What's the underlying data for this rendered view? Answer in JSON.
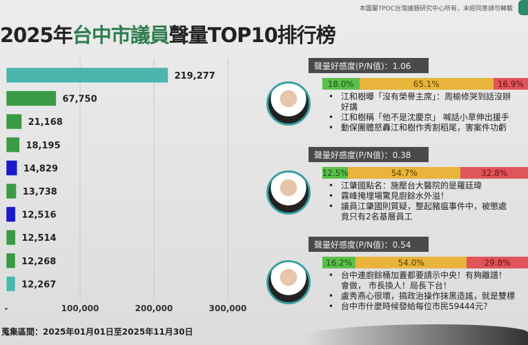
{
  "header": {
    "credit": "本圖屬TPOC台灣議題研究中心所有，未經同意請勿轉載",
    "title_pre": "2025年",
    "title_green": "台中市議員",
    "title_post": "聲量TOP10排行榜"
  },
  "footer": {
    "range": "蒐集區間：2025年01月01日至2025年11月30日"
  },
  "chart_data": {
    "type": "bar",
    "orientation": "horizontal",
    "values": [
      219277,
      67750,
      21168,
      18195,
      14829,
      13738,
      12516,
      12514,
      12268,
      12267
    ],
    "labels": [
      "219,277",
      "67,750",
      "21,168",
      "18,195",
      "14,829",
      "13,738",
      "12,516",
      "12,514",
      "12,268",
      "12,267"
    ],
    "colors": [
      "#4cb5ae",
      "#3b9a45",
      "#3b9a45",
      "#3b9a45",
      "#1a1ac8",
      "#3b9a45",
      "#1a1ac8",
      "#3b9a45",
      "#3b9a45",
      "#4cb5ae"
    ],
    "xlim": [
      0,
      300000
    ],
    "xticks": [
      "-",
      "100,000",
      "200,000",
      "300,000"
    ],
    "xtick_values": [
      0,
      100000,
      200000,
      300000
    ],
    "grid": true
  },
  "panels": [
    {
      "pn": "聲量好感度(P/N值)：1.06",
      "pos": 18.0,
      "neu": 65.1,
      "neg": 16.9,
      "pos_l": "18.0%",
      "neu_l": "65.1%",
      "neg_l": "16.9%",
      "news": [
        "江和樹曝「沒有榮譽主席」：周榆修哭到話沒辦",
        "好講",
        "江和樹稱「他不是沈慶京」 喊話小草伸出援手",
        "動保團體怒轟江和樹作秀割稻尾，害案件功虧"
      ]
    },
    {
      "pn": "聲量好感度(P/N值)：0.38",
      "pos": 12.5,
      "neu": 54.7,
      "neg": 32.8,
      "pos_l": "12.5%",
      "neu_l": "54.7%",
      "neg_l": "32.8%",
      "news": [
        "江肇國點名：施壓台大醫院的是羅廷瑋",
        "霧峰掩埋場驚見廚餘水外溢！",
        "議員江肇國則質疑，整起豬瘟事件中，被懲處",
        "竟只有2名基層員工"
      ]
    },
    {
      "pn": "聲量好感度(P/N值)：0.54",
      "pos": 16.2,
      "neu": 54.0,
      "neg": 29.8,
      "pos_l": "16.2%",
      "neu_l": "54.0%",
      "neg_l": "29.8%",
      "news": [
        "台中連廚餘桶加蓋都要請示中央！有夠離譜！",
        "會做， 市長換人！局長下台！",
        "盧秀燕心很壞，搞政治操作抹黑造謠，就是雙標",
        "台中市什麼時候發給每位市民59444元？"
      ]
    }
  ]
}
